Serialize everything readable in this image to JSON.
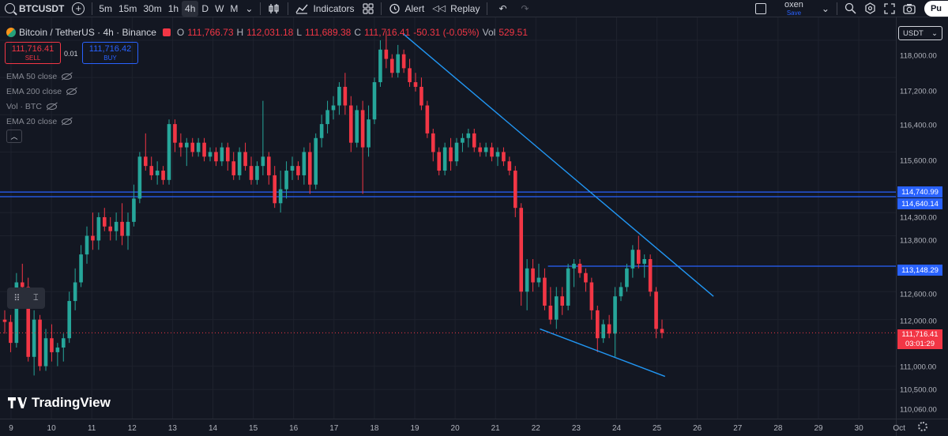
{
  "toolbar": {
    "symbol": "BTCUSDT",
    "intervals": [
      "5m",
      "15m",
      "30m",
      "1h",
      "4h",
      "D",
      "W",
      "M"
    ],
    "active_interval": "4h",
    "indicators_label": "Indicators",
    "alert_label": "Alert",
    "replay_label": "Replay",
    "layout_name": "oxen",
    "layout_status": "Save",
    "publish_label": "Pu"
  },
  "legend": {
    "title": "Bitcoin / TetherUS · 4h · Binance",
    "o_label": "O",
    "o": "111,766.73",
    "h_label": "H",
    "h": "112,031.18",
    "l_label": "L",
    "l": "111,689.38",
    "c_label": "C",
    "c": "111,716.41",
    "change": "-50.31 (-0.05%)",
    "vol_label": "Vol",
    "vol": "529.51"
  },
  "trade": {
    "sell_price": "111,716.41",
    "sell_label": "SELL",
    "qty": "0.01",
    "buy_price": "111,716.42",
    "buy_label": "BUY"
  },
  "indicators": [
    "EMA 50 close",
    "EMA 200 close",
    "Vol · BTC",
    "EMA 20 close"
  ],
  "price_axis": {
    "currency": "USDT",
    "ticks": [
      "118,000.00",
      "117,200.00",
      "116,400.00",
      "115,600.00",
      "114,300.00",
      "113,800.00",
      "112,600.00",
      "112,000.00",
      "111,000.00",
      "110,500.00",
      "110,060.00"
    ],
    "levels": [
      "114,740.99",
      "114,640.14",
      "113,148.29"
    ],
    "last_price": "111,716.41",
    "countdown": "03:01:29"
  },
  "time_axis": {
    "labels": [
      "9",
      "10",
      "11",
      "12",
      "13",
      "14",
      "15",
      "16",
      "17",
      "18",
      "19",
      "20",
      "21",
      "22",
      "23",
      "24",
      "25",
      "26",
      "27",
      "28",
      "29",
      "30",
      "Oct"
    ]
  },
  "branding": {
    "logo_text": "TradingView"
  },
  "colors": {
    "up": "#26a69a",
    "down": "#f23645",
    "line": "#2962ff",
    "trend": "#2196f3",
    "bg": "#131722"
  },
  "chart_data": {
    "type": "candlestick",
    "symbol": "BTCUSDT",
    "interval": "4h",
    "ylim": [
      110060,
      118400
    ],
    "horizontal_levels": [
      114740.99,
      114640.14,
      113148.29
    ],
    "last_price": 111716.41,
    "candles": [
      {
        "o": 112000,
        "h": 112200,
        "l": 111700,
        "c": 111950
      },
      {
        "o": 111950,
        "h": 112100,
        "l": 111300,
        "c": 111500
      },
      {
        "o": 111500,
        "h": 113000,
        "l": 111400,
        "c": 112800
      },
      {
        "o": 112800,
        "h": 113200,
        "l": 112300,
        "c": 112700
      },
      {
        "o": 112700,
        "h": 112900,
        "l": 111100,
        "c": 111200
      },
      {
        "o": 111200,
        "h": 112200,
        "l": 110800,
        "c": 112000
      },
      {
        "o": 112000,
        "h": 112100,
        "l": 110900,
        "c": 111000
      },
      {
        "o": 111000,
        "h": 111800,
        "l": 110900,
        "c": 111600
      },
      {
        "o": 111600,
        "h": 111900,
        "l": 111100,
        "c": 111300
      },
      {
        "o": 111300,
        "h": 111500,
        "l": 111000,
        "c": 111400
      },
      {
        "o": 111400,
        "h": 111700,
        "l": 111100,
        "c": 111600
      },
      {
        "o": 111600,
        "h": 112600,
        "l": 111500,
        "c": 112400
      },
      {
        "o": 112400,
        "h": 113100,
        "l": 112200,
        "c": 112800
      },
      {
        "o": 112800,
        "h": 113600,
        "l": 112700,
        "c": 113400
      },
      {
        "o": 113400,
        "h": 114000,
        "l": 113200,
        "c": 113800
      },
      {
        "o": 113800,
        "h": 114300,
        "l": 113500,
        "c": 113700
      },
      {
        "o": 113700,
        "h": 114300,
        "l": 113500,
        "c": 114200
      },
      {
        "o": 114200,
        "h": 114400,
        "l": 113900,
        "c": 114000
      },
      {
        "o": 114000,
        "h": 114200,
        "l": 113700,
        "c": 113900
      },
      {
        "o": 113900,
        "h": 114300,
        "l": 113700,
        "c": 114100
      },
      {
        "o": 114100,
        "h": 114500,
        "l": 113600,
        "c": 113800
      },
      {
        "o": 113800,
        "h": 114300,
        "l": 113500,
        "c": 114100
      },
      {
        "o": 114100,
        "h": 114900,
        "l": 114000,
        "c": 114600
      },
      {
        "o": 114600,
        "h": 115600,
        "l": 114500,
        "c": 115500
      },
      {
        "o": 115500,
        "h": 116000,
        "l": 115200,
        "c": 115300
      },
      {
        "o": 115300,
        "h": 115500,
        "l": 115000,
        "c": 115100
      },
      {
        "o": 115100,
        "h": 115400,
        "l": 114900,
        "c": 115200
      },
      {
        "o": 115200,
        "h": 115300,
        "l": 114900,
        "c": 115000
      },
      {
        "o": 115000,
        "h": 116300,
        "l": 114900,
        "c": 116200
      },
      {
        "o": 116200,
        "h": 116300,
        "l": 115600,
        "c": 115800
      },
      {
        "o": 115800,
        "h": 116000,
        "l": 115500,
        "c": 115700
      },
      {
        "o": 115700,
        "h": 115900,
        "l": 115300,
        "c": 115800
      },
      {
        "o": 115800,
        "h": 115900,
        "l": 115500,
        "c": 115600
      },
      {
        "o": 115600,
        "h": 115900,
        "l": 115500,
        "c": 115800
      },
      {
        "o": 115800,
        "h": 115900,
        "l": 115400,
        "c": 115500
      },
      {
        "o": 115500,
        "h": 115700,
        "l": 115400,
        "c": 115600
      },
      {
        "o": 115600,
        "h": 115700,
        "l": 115300,
        "c": 115400
      },
      {
        "o": 115400,
        "h": 115800,
        "l": 115300,
        "c": 115700
      },
      {
        "o": 115700,
        "h": 115800,
        "l": 115200,
        "c": 115400
      },
      {
        "o": 115400,
        "h": 115600,
        "l": 115000,
        "c": 115100
      },
      {
        "o": 115100,
        "h": 115700,
        "l": 115000,
        "c": 115600
      },
      {
        "o": 115600,
        "h": 115800,
        "l": 115200,
        "c": 115300
      },
      {
        "o": 115300,
        "h": 115500,
        "l": 114900,
        "c": 115000
      },
      {
        "o": 115000,
        "h": 115400,
        "l": 114900,
        "c": 115300
      },
      {
        "o": 115300,
        "h": 116700,
        "l": 115100,
        "c": 115500
      },
      {
        "o": 115500,
        "h": 115600,
        "l": 114900,
        "c": 115100
      },
      {
        "o": 115100,
        "h": 115300,
        "l": 114400,
        "c": 114500
      },
      {
        "o": 114500,
        "h": 115200,
        "l": 114300,
        "c": 114800
      },
      {
        "o": 114800,
        "h": 115400,
        "l": 114600,
        "c": 115200
      },
      {
        "o": 115200,
        "h": 115500,
        "l": 115000,
        "c": 115300
      },
      {
        "o": 115300,
        "h": 115400,
        "l": 115000,
        "c": 115100
      },
      {
        "o": 115100,
        "h": 115700,
        "l": 114900,
        "c": 115600
      },
      {
        "o": 115600,
        "h": 115800,
        "l": 114700,
        "c": 114900
      },
      {
        "o": 114900,
        "h": 116000,
        "l": 114800,
        "c": 115900
      },
      {
        "o": 115900,
        "h": 116400,
        "l": 115700,
        "c": 116200
      },
      {
        "o": 116200,
        "h": 116700,
        "l": 116000,
        "c": 116500
      },
      {
        "o": 116500,
        "h": 116800,
        "l": 116300,
        "c": 116600
      },
      {
        "o": 116600,
        "h": 117100,
        "l": 116400,
        "c": 117000
      },
      {
        "o": 117000,
        "h": 117300,
        "l": 116400,
        "c": 116600
      },
      {
        "o": 116600,
        "h": 116800,
        "l": 115600,
        "c": 115800
      },
      {
        "o": 115800,
        "h": 116600,
        "l": 115700,
        "c": 116500
      },
      {
        "o": 116500,
        "h": 116700,
        "l": 114700,
        "c": 115700
      },
      {
        "o": 115700,
        "h": 116600,
        "l": 115500,
        "c": 116300
      },
      {
        "o": 116300,
        "h": 117200,
        "l": 116200,
        "c": 117100
      },
      {
        "o": 117100,
        "h": 118000,
        "l": 117000,
        "c": 117800
      },
      {
        "o": 117800,
        "h": 118200,
        "l": 117400,
        "c": 117600
      },
      {
        "o": 117600,
        "h": 117700,
        "l": 117200,
        "c": 117300
      },
      {
        "o": 117300,
        "h": 117900,
        "l": 117200,
        "c": 117700
      },
      {
        "o": 117700,
        "h": 117800,
        "l": 117300,
        "c": 117400
      },
      {
        "o": 117400,
        "h": 117600,
        "l": 117000,
        "c": 117100
      },
      {
        "o": 117100,
        "h": 117300,
        "l": 116900,
        "c": 117000
      },
      {
        "o": 117000,
        "h": 117200,
        "l": 116500,
        "c": 116600
      },
      {
        "o": 116600,
        "h": 116700,
        "l": 115900,
        "c": 116000
      },
      {
        "o": 116000,
        "h": 116100,
        "l": 115400,
        "c": 115600
      },
      {
        "o": 115600,
        "h": 115700,
        "l": 115100,
        "c": 115200
      },
      {
        "o": 115200,
        "h": 115800,
        "l": 115100,
        "c": 115700
      },
      {
        "o": 115700,
        "h": 115900,
        "l": 115200,
        "c": 115400
      },
      {
        "o": 115400,
        "h": 115900,
        "l": 115300,
        "c": 115800
      },
      {
        "o": 115800,
        "h": 116000,
        "l": 115600,
        "c": 115900
      },
      {
        "o": 115900,
        "h": 116100,
        "l": 115700,
        "c": 116000
      },
      {
        "o": 116000,
        "h": 116100,
        "l": 115600,
        "c": 115700
      },
      {
        "o": 115700,
        "h": 115800,
        "l": 115500,
        "c": 115600
      },
      {
        "o": 115600,
        "h": 115800,
        "l": 115500,
        "c": 115700
      },
      {
        "o": 115700,
        "h": 115800,
        "l": 115400,
        "c": 115500
      },
      {
        "o": 115500,
        "h": 115700,
        "l": 115300,
        "c": 115600
      },
      {
        "o": 115600,
        "h": 115700,
        "l": 115300,
        "c": 115400
      },
      {
        "o": 115400,
        "h": 115500,
        "l": 115100,
        "c": 115200
      },
      {
        "o": 115200,
        "h": 115300,
        "l": 114200,
        "c": 114400
      },
      {
        "o": 114400,
        "h": 114500,
        "l": 112300,
        "c": 112600
      },
      {
        "o": 112600,
        "h": 113300,
        "l": 112200,
        "c": 113100
      },
      {
        "o": 113100,
        "h": 113300,
        "l": 112600,
        "c": 112800
      },
      {
        "o": 112800,
        "h": 113200,
        "l": 112700,
        "c": 112900
      },
      {
        "o": 112900,
        "h": 113100,
        "l": 112200,
        "c": 112300
      },
      {
        "o": 112300,
        "h": 112700,
        "l": 111900,
        "c": 112000
      },
      {
        "o": 112000,
        "h": 112700,
        "l": 111800,
        "c": 112500
      },
      {
        "o": 112500,
        "h": 112700,
        "l": 112100,
        "c": 112300
      },
      {
        "o": 112300,
        "h": 113200,
        "l": 112200,
        "c": 113100
      },
      {
        "o": 113100,
        "h": 113300,
        "l": 112700,
        "c": 113200
      },
      {
        "o": 113200,
        "h": 113300,
        "l": 112900,
        "c": 113000
      },
      {
        "o": 113000,
        "h": 113100,
        "l": 112600,
        "c": 112800
      },
      {
        "o": 112800,
        "h": 112900,
        "l": 112000,
        "c": 112200
      },
      {
        "o": 112200,
        "h": 112300,
        "l": 111300,
        "c": 111600
      },
      {
        "o": 111600,
        "h": 112000,
        "l": 111500,
        "c": 111900
      },
      {
        "o": 111900,
        "h": 112100,
        "l": 111600,
        "c": 111700
      },
      {
        "o": 111700,
        "h": 112700,
        "l": 111200,
        "c": 112500
      },
      {
        "o": 112500,
        "h": 112800,
        "l": 112400,
        "c": 112700
      },
      {
        "o": 112700,
        "h": 113200,
        "l": 112600,
        "c": 113100
      },
      {
        "o": 113100,
        "h": 113600,
        "l": 112900,
        "c": 113500
      },
      {
        "o": 113500,
        "h": 113800,
        "l": 113100,
        "c": 113200
      },
      {
        "o": 113200,
        "h": 113400,
        "l": 112900,
        "c": 113300
      },
      {
        "o": 113300,
        "h": 113400,
        "l": 112500,
        "c": 112600
      },
      {
        "o": 112600,
        "h": 112700,
        "l": 111600,
        "c": 111800
      },
      {
        "o": 111800,
        "h": 112000,
        "l": 111600,
        "c": 111716
      }
    ],
    "trendlines": [
      {
        "from": {
          "day": 18.7,
          "price": 118150
        },
        "to": {
          "day": 26.4,
          "price": 112500
        }
      },
      {
        "from": {
          "day": 22.1,
          "price": 111800
        },
        "to": {
          "day": 25.2,
          "price": 110780
        }
      }
    ],
    "short_level": {
      "from_day": 22.3,
      "to_day": 25.1,
      "price": 113148.29
    }
  }
}
